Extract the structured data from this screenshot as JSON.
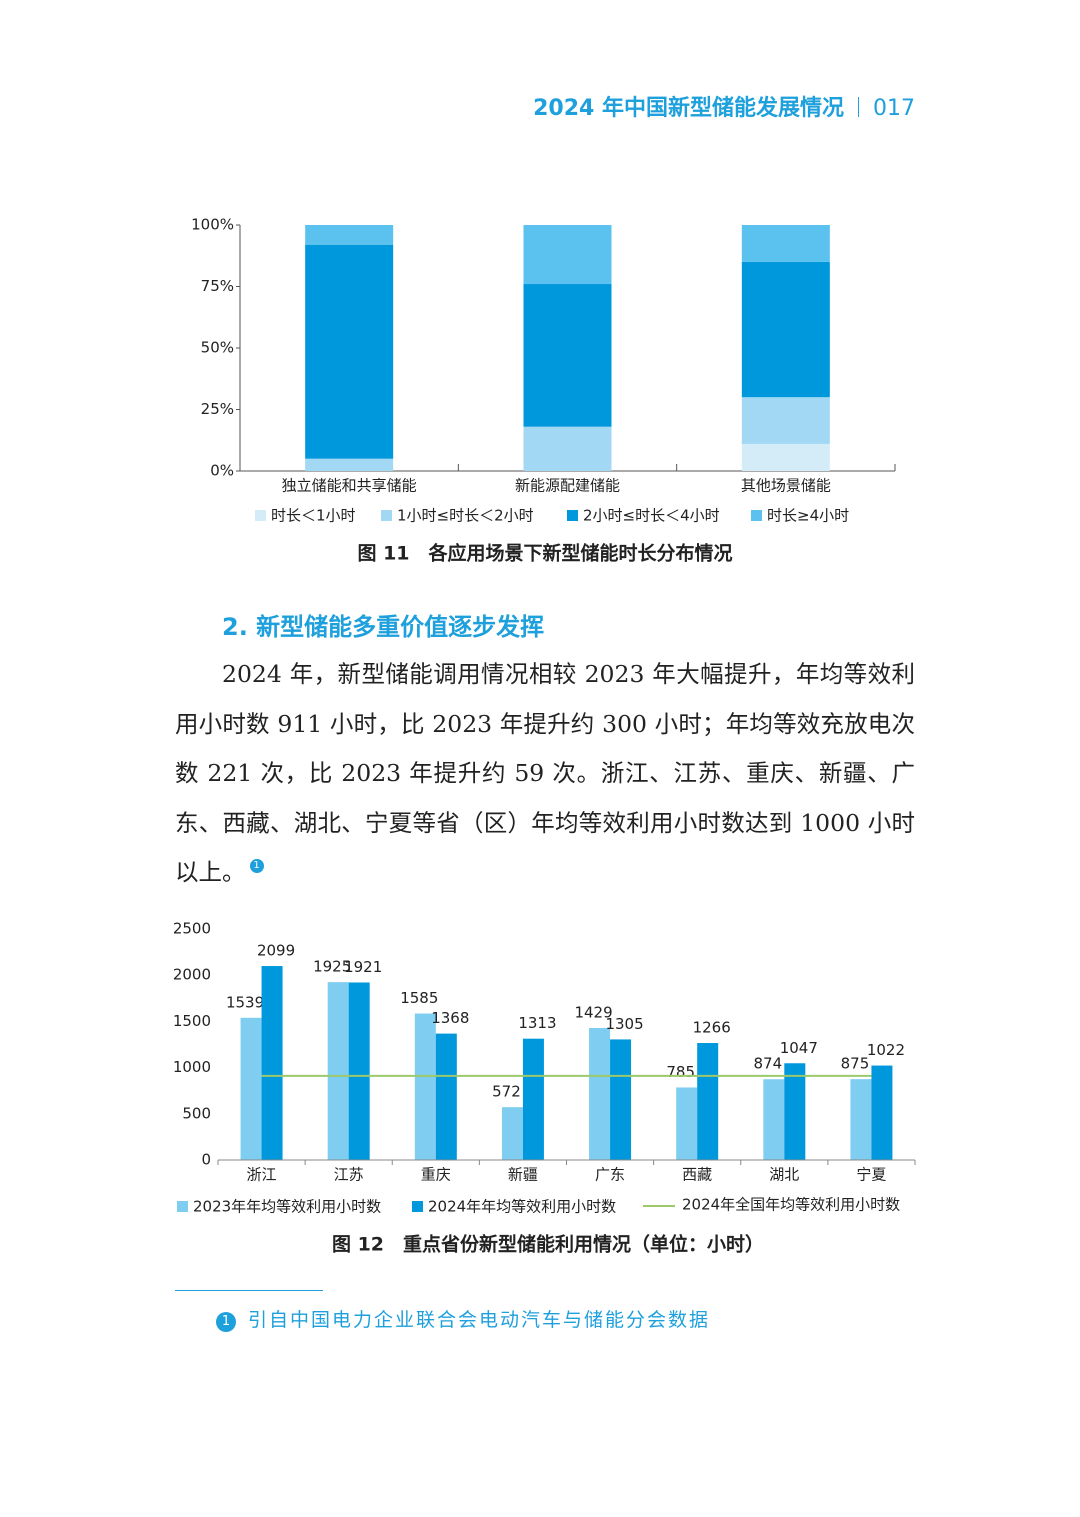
{
  "header": {
    "title": "2024 年中国新型储能发展情况",
    "page": "017"
  },
  "chart_data": [
    {
      "type": "stacked-bar",
      "title": "图 11　各应用场景下新型储能时长分布情况",
      "categories": [
        "独立储能和共享储能",
        "新能源配建储能",
        "其他场景储能"
      ],
      "series": [
        {
          "name": "时长＜1小时",
          "color": "#d4ecf8",
          "values": [
            0,
            0,
            11
          ]
        },
        {
          "name": "1小时≤时长＜2小时",
          "color": "#a2d8f4",
          "values": [
            5,
            18,
            19
          ]
        },
        {
          "name": "2小时≤时长＜4小时",
          "color": "#0098dc",
          "values": [
            87,
            58,
            55
          ]
        },
        {
          "name": "时长≥4小时",
          "color": "#5bc1ef",
          "values": [
            8,
            24,
            15
          ]
        }
      ],
      "ylim": [
        0,
        100
      ],
      "yticks": [
        {
          "value": 0,
          "label": "0%"
        },
        {
          "value": 25,
          "label": "25%"
        },
        {
          "value": 50,
          "label": "50%"
        },
        {
          "value": 75,
          "label": "75%"
        },
        {
          "value": 100,
          "label": "100%"
        }
      ]
    },
    {
      "type": "bar",
      "title": "图 12　重点省份新型储能利用情况（单位：小时）",
      "categories": [
        "浙江",
        "江苏",
        "重庆",
        "新疆",
        "广东",
        "西藏",
        "湖北",
        "宁夏"
      ],
      "series": [
        {
          "name": "2023年年均等效利用小时数",
          "color": "#7fcef1",
          "values": [
            1539,
            1925,
            1585,
            572,
            1429,
            785,
            874,
            875
          ]
        },
        {
          "name": "2024年年均等效利用小时数",
          "color": "#0098dc",
          "values": [
            2099,
            1921,
            1368,
            1313,
            1305,
            1266,
            1047,
            1022
          ]
        }
      ],
      "reference_line": {
        "name": "2024年全国年均等效利用小时数",
        "value": 911,
        "color": "#9cc96b"
      },
      "ylim": [
        0,
        2500
      ],
      "yticks": [
        0,
        500,
        1000,
        1500,
        2000,
        2500
      ]
    }
  ],
  "section": "2. 新型储能多重价值逐步发挥",
  "paragraph": {
    "text": "2024 年，新型储能调用情况相较 2023 年大幅提升，年均等效利用小时数 911 小时，比 2023 年提升约 300 小时；年均等效充放电次数 221 次，比 2023 年提升约 59 次。浙江、江苏、重庆、新疆、广东、西藏、湖北、宁夏等省（区）年均等效利用小时数达到 1000 小时以上。",
    "note_marker": "1"
  },
  "footnote": {
    "marker": "1",
    "text": "引自中国电力企业联合会电动汽车与储能分会数据"
  }
}
